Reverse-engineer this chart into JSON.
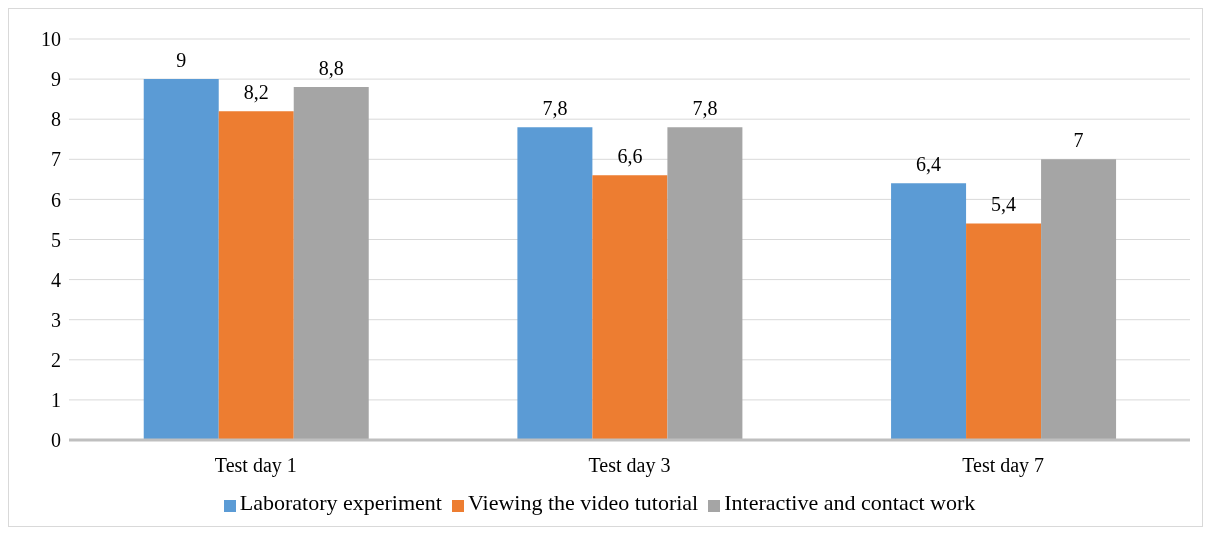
{
  "chart_data": {
    "type": "bar",
    "categories": [
      "Test day 1",
      "Test day 3",
      "Test day 7"
    ],
    "series": [
      {
        "name": "Laboratory experiment",
        "color": "#5b9bd5",
        "values": [
          9,
          7.8,
          6.4
        ],
        "value_labels": [
          "9",
          "7,8",
          "6,4"
        ]
      },
      {
        "name": "Viewing the video tutorial",
        "color": "#ed7d31",
        "values": [
          8.2,
          6.6,
          5.4
        ],
        "value_labels": [
          "8,2",
          "6,6",
          "5,4"
        ]
      },
      {
        "name": "Interactive and contact work",
        "color": "#a5a5a5",
        "values": [
          8.8,
          7.8,
          7
        ],
        "value_labels": [
          "8,8",
          "7,8",
          "7"
        ]
      }
    ],
    "ylim": [
      0,
      10
    ],
    "yticks": [
      0,
      1,
      2,
      3,
      4,
      5,
      6,
      7,
      8,
      9,
      10
    ],
    "grid": "y",
    "legend": "bottom"
  }
}
